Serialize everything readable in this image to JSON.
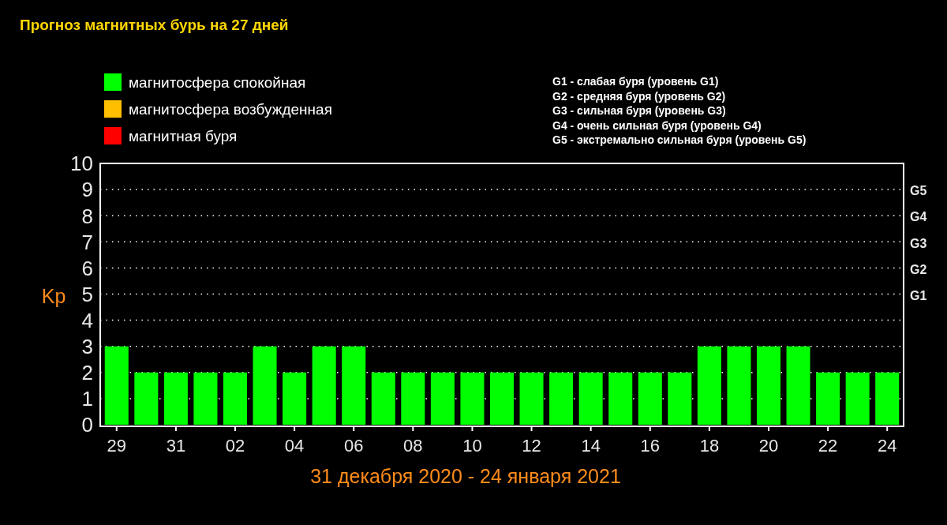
{
  "chart_data": {
    "type": "bar",
    "title": "Прогноз магнитных бурь на 27 дней",
    "xlabel": "31 декабря 2020 - 24 января 2021",
    "ylabel": "Kp",
    "categories": [
      "29",
      null,
      "31",
      null,
      "02",
      null,
      "04",
      null,
      "06",
      null,
      "08",
      null,
      "10",
      null,
      "12",
      null,
      "14",
      null,
      "16",
      null,
      "18",
      null,
      "20",
      null,
      "22",
      null,
      "24"
    ],
    "series": [
      {
        "name": "магнитосфера спокойная",
        "color": "#00ff00",
        "values": [
          3,
          2,
          2,
          2,
          2,
          3,
          2,
          3,
          3,
          2,
          2,
          2,
          2,
          2,
          2,
          2,
          2,
          2,
          2,
          2,
          3,
          3,
          3,
          3,
          2,
          2,
          2
        ]
      },
      {
        "name": "магнитосфера возбужденная",
        "color": "#ffbf00",
        "values": [
          null,
          null,
          null,
          null,
          null,
          null,
          null,
          null,
          null,
          null,
          null,
          null,
          null,
          null,
          null,
          null,
          null,
          null,
          null,
          null,
          null,
          null,
          null,
          null,
          null,
          null,
          null
        ]
      },
      {
        "name": "магнитная буря",
        "color": "#ff0000",
        "values": [
          null,
          null,
          null,
          null,
          null,
          null,
          null,
          null,
          null,
          null,
          null,
          null,
          null,
          null,
          null,
          null,
          null,
          null,
          null,
          null,
          null,
          null,
          null,
          null,
          null,
          null,
          null
        ]
      }
    ],
    "ylim": [
      0,
      10
    ],
    "yticks": [
      0,
      1,
      2,
      3,
      4,
      5,
      6,
      7,
      8,
      9,
      10
    ],
    "grid": "y",
    "legend": "top left",
    "annotations": [
      "G1 - слабая буря (уровень G1)",
      "G2 - средняя буря (уровень G2)",
      "G3 - сильная буря (уровень G3)",
      "G4 - очень сильная буря (уровень G4)",
      "G5 - экстремально сильная буря (уровень G5)",
      "G1",
      "G2",
      "G3",
      "G4",
      "G5"
    ]
  }
}
